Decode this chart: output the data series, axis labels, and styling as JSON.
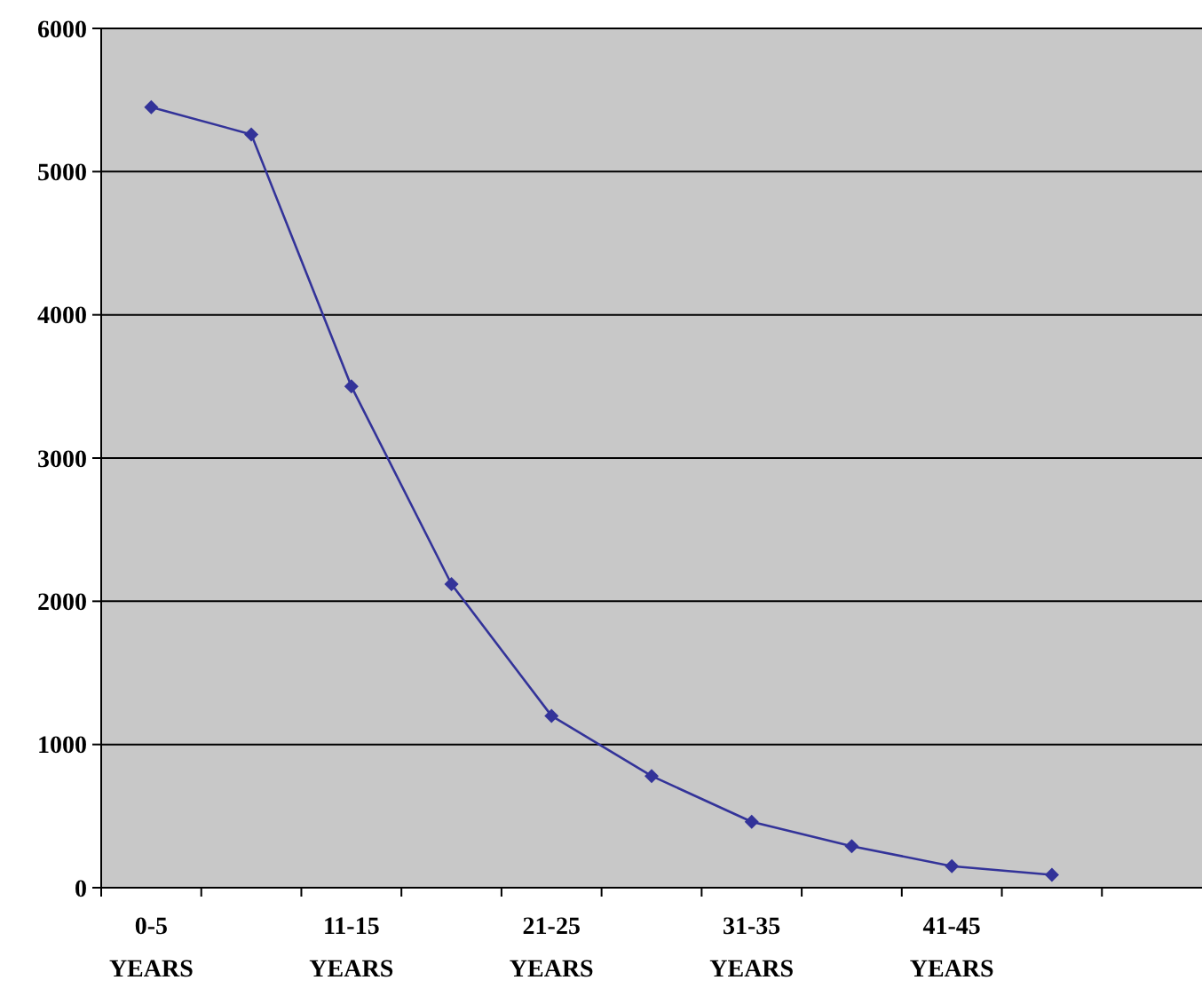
{
  "chart_data": {
    "type": "line",
    "categories": [
      "0-5 YEARS",
      null,
      "11-15 YEARS",
      null,
      "21-25 YEARS",
      null,
      "31-35 YEARS",
      null,
      "41-45 YEARS",
      null,
      null
    ],
    "series": [
      {
        "color": "#333399",
        "values": [
          5450,
          5260,
          3500,
          2120,
          1200,
          780,
          460,
          290,
          150,
          90,
          null
        ]
      }
    ],
    "ylim": [
      0,
      6000
    ],
    "yticks": [
      0,
      1000,
      2000,
      3000,
      4000,
      5000,
      6000
    ],
    "grid": "y",
    "marker": "diamond",
    "line_style": "solid"
  }
}
